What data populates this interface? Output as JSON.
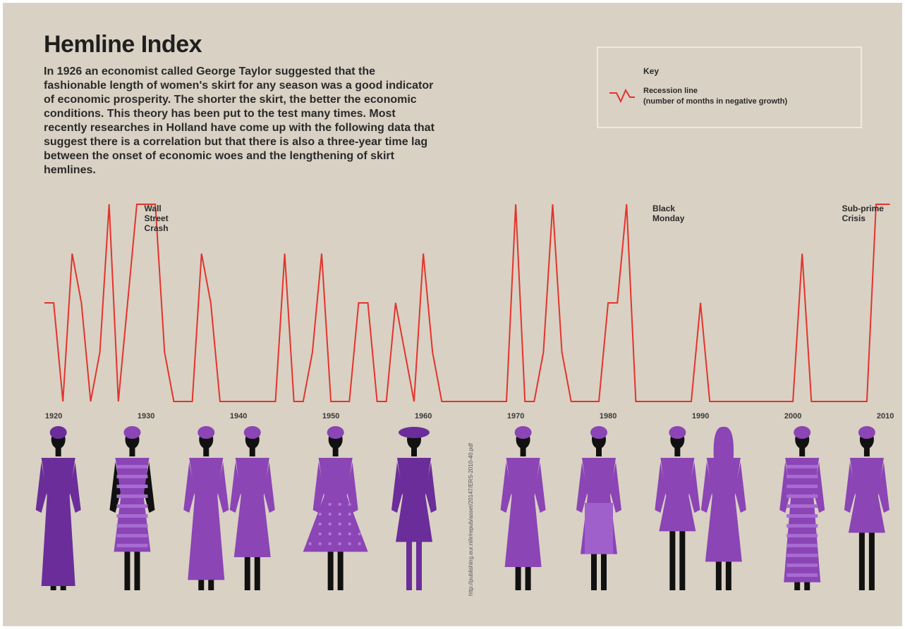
{
  "title": "Hemline Index",
  "intro": "In 1926 an economist called George Taylor suggested that the fashionable length of women's skirt for any season was a good indicator of economic prosperity. The shorter the skirt, the better the economic conditions. This theory has been put to the test many times. Most recently researches in Holland have come up with the following data that suggest there is a correlation but that there is also a three-year time lag between the onset of economic woes and the lengthening of skirt hemlines.",
  "legend": {
    "title": "Key",
    "line1": "Recession line",
    "line2": "(number of months in negative growth)"
  },
  "source_note": "http://publishing.eur.nl/ir/repub/asset/20147/ERS-2010-40.pdf",
  "colors": {
    "background": "#d9d1c4",
    "recession_line": "#e3342c",
    "figure_purple": "#8b45b5",
    "figure_dark_purple": "#6b2d9a",
    "figure_skin": "#111111",
    "text": "#2a2a2a"
  },
  "chart_data": {
    "type": "line",
    "title": "Hemline Index",
    "xlabel": "",
    "ylabel": "",
    "xlim": [
      1919,
      2011
    ],
    "ylim": [
      0,
      1
    ],
    "x_ticks": [
      1920,
      1930,
      1940,
      1950,
      1960,
      1970,
      1980,
      1990,
      2000,
      2010
    ],
    "grid": false,
    "legend_position": "top-right",
    "series": [
      {
        "name": "Recession line",
        "note": "number of months in negative growth (relative level; axis not labelled)",
        "x": [
          1919.0,
          1920.0,
          1921.0,
          1922.0,
          1923.0,
          1924.0,
          1925.0,
          1926.0,
          1927.0,
          1928.0,
          1929.0,
          1930.0,
          1931.0,
          1932.0,
          1933.0,
          1934.0,
          1935.0,
          1936.0,
          1937.0,
          1938.0,
          1939.0,
          1940.0,
          1941.0,
          1942.0,
          1943.0,
          1944.0,
          1945.0,
          1946.0,
          1947.0,
          1948.0,
          1949.0,
          1950.0,
          1951.0,
          1952.0,
          1953.0,
          1954.0,
          1955.0,
          1956.0,
          1957.0,
          1958.0,
          1959.0,
          1960.0,
          1961.0,
          1962.0,
          1969.0,
          1970.0,
          1971.0,
          1972.0,
          1973.0,
          1974.0,
          1975.0,
          1976.0,
          1977.0,
          1978.0,
          1979.0,
          1980.0,
          1981.0,
          1982.0,
          1983.0,
          1984.0,
          1989.0,
          1990.0,
          1991.0,
          1992.0,
          2000.0,
          2001.0,
          2002.0,
          2008.0,
          2009.0,
          2010.5
        ],
        "values": [
          0.5,
          0.5,
          0.0,
          0.75,
          0.5,
          0.0,
          0.25,
          1.0,
          0.0,
          0.5,
          1.0,
          1.0,
          1.0,
          0.25,
          0.0,
          0.0,
          0.0,
          0.75,
          0.5,
          0.0,
          0.0,
          0.0,
          0.0,
          0.0,
          0.0,
          0.0,
          0.75,
          0.0,
          0.0,
          0.25,
          0.75,
          0.0,
          0.0,
          0.0,
          0.5,
          0.5,
          0.0,
          0.0,
          0.5,
          0.25,
          0.0,
          0.75,
          0.25,
          0.0,
          0.0,
          1.0,
          0.0,
          0.0,
          0.25,
          1.0,
          0.25,
          0.0,
          0.0,
          0.0,
          0.0,
          0.5,
          0.5,
          1.0,
          0.0,
          0.0,
          0.0,
          0.5,
          0.0,
          0.0,
          0.0,
          0.75,
          0.0,
          0.0,
          1.0,
          1.0
        ]
      }
    ],
    "annotations": [
      {
        "x": 1929.5,
        "text_lines": [
          "Wall",
          "Street",
          "Crash"
        ]
      },
      {
        "x": 1984.5,
        "text_lines": [
          "Black",
          "Monday"
        ]
      },
      {
        "x": 2005.0,
        "text_lines": [
          "Sub-prime",
          "Crisis"
        ]
      }
    ],
    "figures": [
      {
        "decade": 1920,
        "x": 1920.5,
        "hemline": 1.0,
        "style": "full"
      },
      {
        "decade": 1930,
        "x": 1928.5,
        "hemline": 0.55,
        "style": "strapless-stripes"
      },
      {
        "decade": 1930,
        "x": 1936.5,
        "hemline": 0.92,
        "style": "long-sleeve"
      },
      {
        "decade": 1940,
        "x": 1941.5,
        "hemline": 0.62,
        "style": "long-sleeve"
      },
      {
        "decade": 1950,
        "x": 1950.5,
        "hemline": 0.55,
        "style": "polka-dot-full-skirt"
      },
      {
        "decade": 1960,
        "x": 1959.0,
        "hemline": 0.42,
        "style": "hat-and-boots"
      },
      {
        "decade": 1970,
        "x": 1970.8,
        "hemline": 0.75,
        "style": "long-sleeve"
      },
      {
        "decade": 1980,
        "x": 1979.0,
        "hemline": 0.58,
        "style": "suit"
      },
      {
        "decade": 1980,
        "x": 1987.5,
        "hemline": 0.28,
        "style": "short"
      },
      {
        "decade": 1990,
        "x": 1992.5,
        "hemline": 0.68,
        "style": "long-hair"
      },
      {
        "decade": 2000,
        "x": 2001.0,
        "hemline": 0.95,
        "style": "striped-long"
      },
      {
        "decade": 2010,
        "x": 2008.0,
        "hemline": 0.3,
        "style": "short"
      }
    ]
  }
}
